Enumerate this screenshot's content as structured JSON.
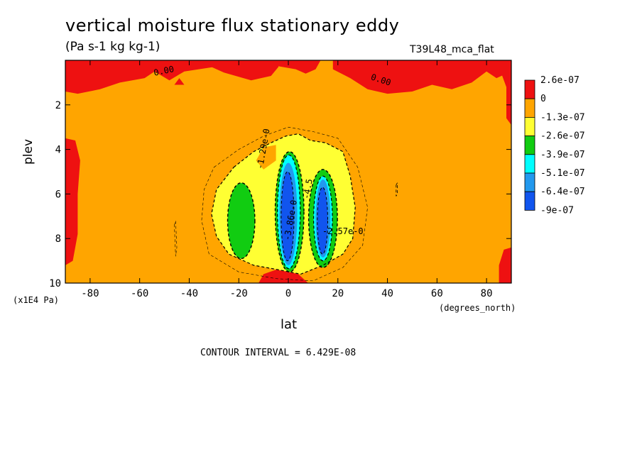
{
  "title": "vertical moisture flux stationary eddy",
  "units": "(Pa s-1 kg kg-1)",
  "model": "T39L48_mca_flat",
  "contour_interval": "CONTOUR INTERVAL = 6.429E-08",
  "chart_data": {
    "type": "heatmap",
    "xlabel": "lat",
    "x_units": "(degrees_north)",
    "ylabel": "plev",
    "y_units": "(x1E4 Pa)",
    "xlim": [
      -90,
      90
    ],
    "ylim": [
      10,
      0
    ],
    "x_ticks": [
      -80,
      -60,
      -40,
      -20,
      0,
      20,
      40,
      60,
      80
    ],
    "y_ticks": [
      2,
      4,
      6,
      8,
      10
    ],
    "grid": false,
    "colorbar": {
      "position": "right",
      "levels": [
        {
          "label": "2.6e-07",
          "color": "#ee1111"
        },
        {
          "label": "0",
          "color": "#ffa500"
        },
        {
          "label": "-1.3e-07",
          "color": "#ffff33"
        },
        {
          "label": "-2.6e-07",
          "color": "#11cc11"
        },
        {
          "label": "-3.9e-07",
          "color": "#00ffff"
        },
        {
          "label": "-5.1e-07",
          "color": "#2299ee"
        },
        {
          "label": "-6.4e-07",
          "color": "#1155ee"
        },
        {
          "label": "-9e-07",
          "color": ""
        }
      ]
    },
    "contour_labels": [
      {
        "text": "0.00",
        "lat": -50,
        "plev": 0.6
      },
      {
        "text": "0.00",
        "lat": 37,
        "plev": 1.0
      },
      {
        "text": "-1.29e-0",
        "lat": -9,
        "plev": 4.0
      },
      {
        "text": "-3.86e-0",
        "lat": 2,
        "plev": 7.2
      },
      {
        "text": "-4.5",
        "lat": 9,
        "plev": 5.8
      },
      {
        "text": "-2.57e-0",
        "lat": 22,
        "plev": 7.8
      }
    ],
    "features": [
      {
        "value": 2.6e-07,
        "desc": "positive flux regions",
        "where": "top boundary (plev 0-1.5), southern edge lat -90 to -85 (plev 3-9), northern edge lat 85-90 (plev 0.5-3, 8.5-10), near-surface patches"
      },
      {
        "value": -2.6e-07,
        "desc": "negative flux cell",
        "where": "lat -24 to -14, plev 5.5-9"
      },
      {
        "value": -6.4e-07,
        "desc": "strongest upward moisture flux",
        "where": "lat -4 to 4, plev 4.3-9.3"
      },
      {
        "value": -6.4e-07,
        "desc": "secondary strong core",
        "where": "lat 10 to 17, plev 5-9"
      }
    ]
  }
}
